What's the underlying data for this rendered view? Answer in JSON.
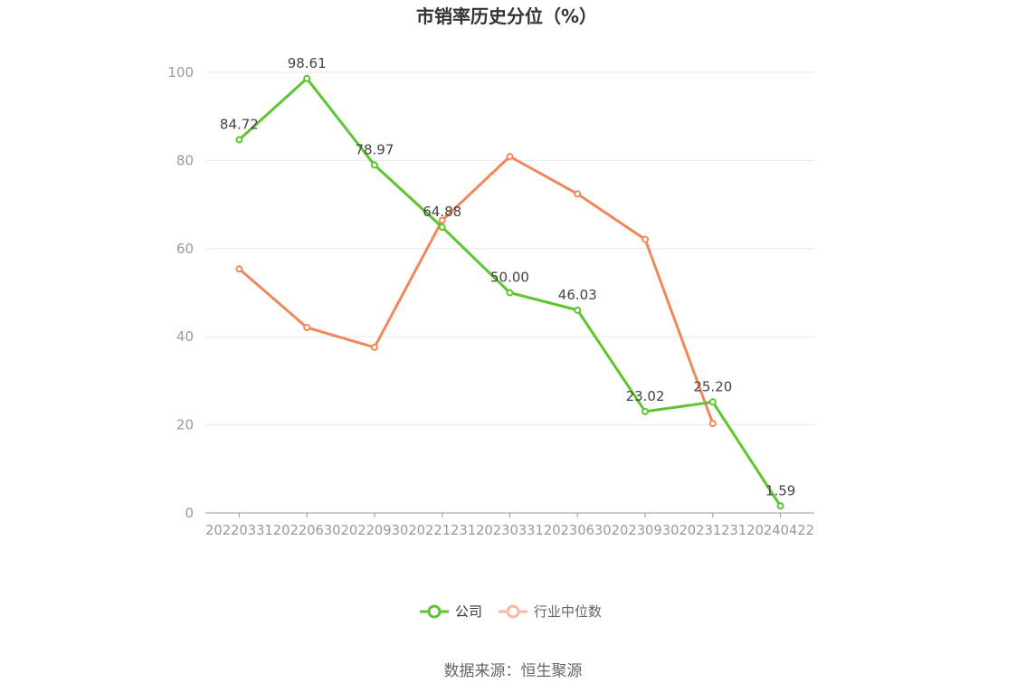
{
  "chart_data": {
    "type": "line",
    "title": "市销率历史分位（%）",
    "categories": [
      "20220331",
      "20220630",
      "20220930",
      "20221231",
      "20230331",
      "20230630",
      "20230930",
      "20231231",
      "20240422"
    ],
    "series": [
      {
        "name": "公司",
        "color": "#5ec432",
        "values": [
          84.72,
          98.61,
          78.97,
          64.88,
          50.0,
          46.03,
          23.02,
          25.2,
          1.59
        ],
        "labels": [
          "84.72",
          "98.61",
          "78.97",
          "64.88",
          "50.00",
          "46.03",
          "23.02",
          "25.20",
          "1.59"
        ]
      },
      {
        "name": "行业中位数",
        "color": "#f0895a",
        "legend_color": "#f8b9a0",
        "values": [
          55.4,
          42.1,
          37.6,
          66.4,
          80.9,
          72.4,
          62.1,
          20.3,
          null
        ]
      }
    ],
    "yticks": [
      "0",
      "20",
      "40",
      "60",
      "80",
      "100"
    ],
    "ylim": [
      0,
      100
    ],
    "grid": true,
    "legend_position": "bottom-center",
    "source": "数据来源：恒生聚源"
  }
}
